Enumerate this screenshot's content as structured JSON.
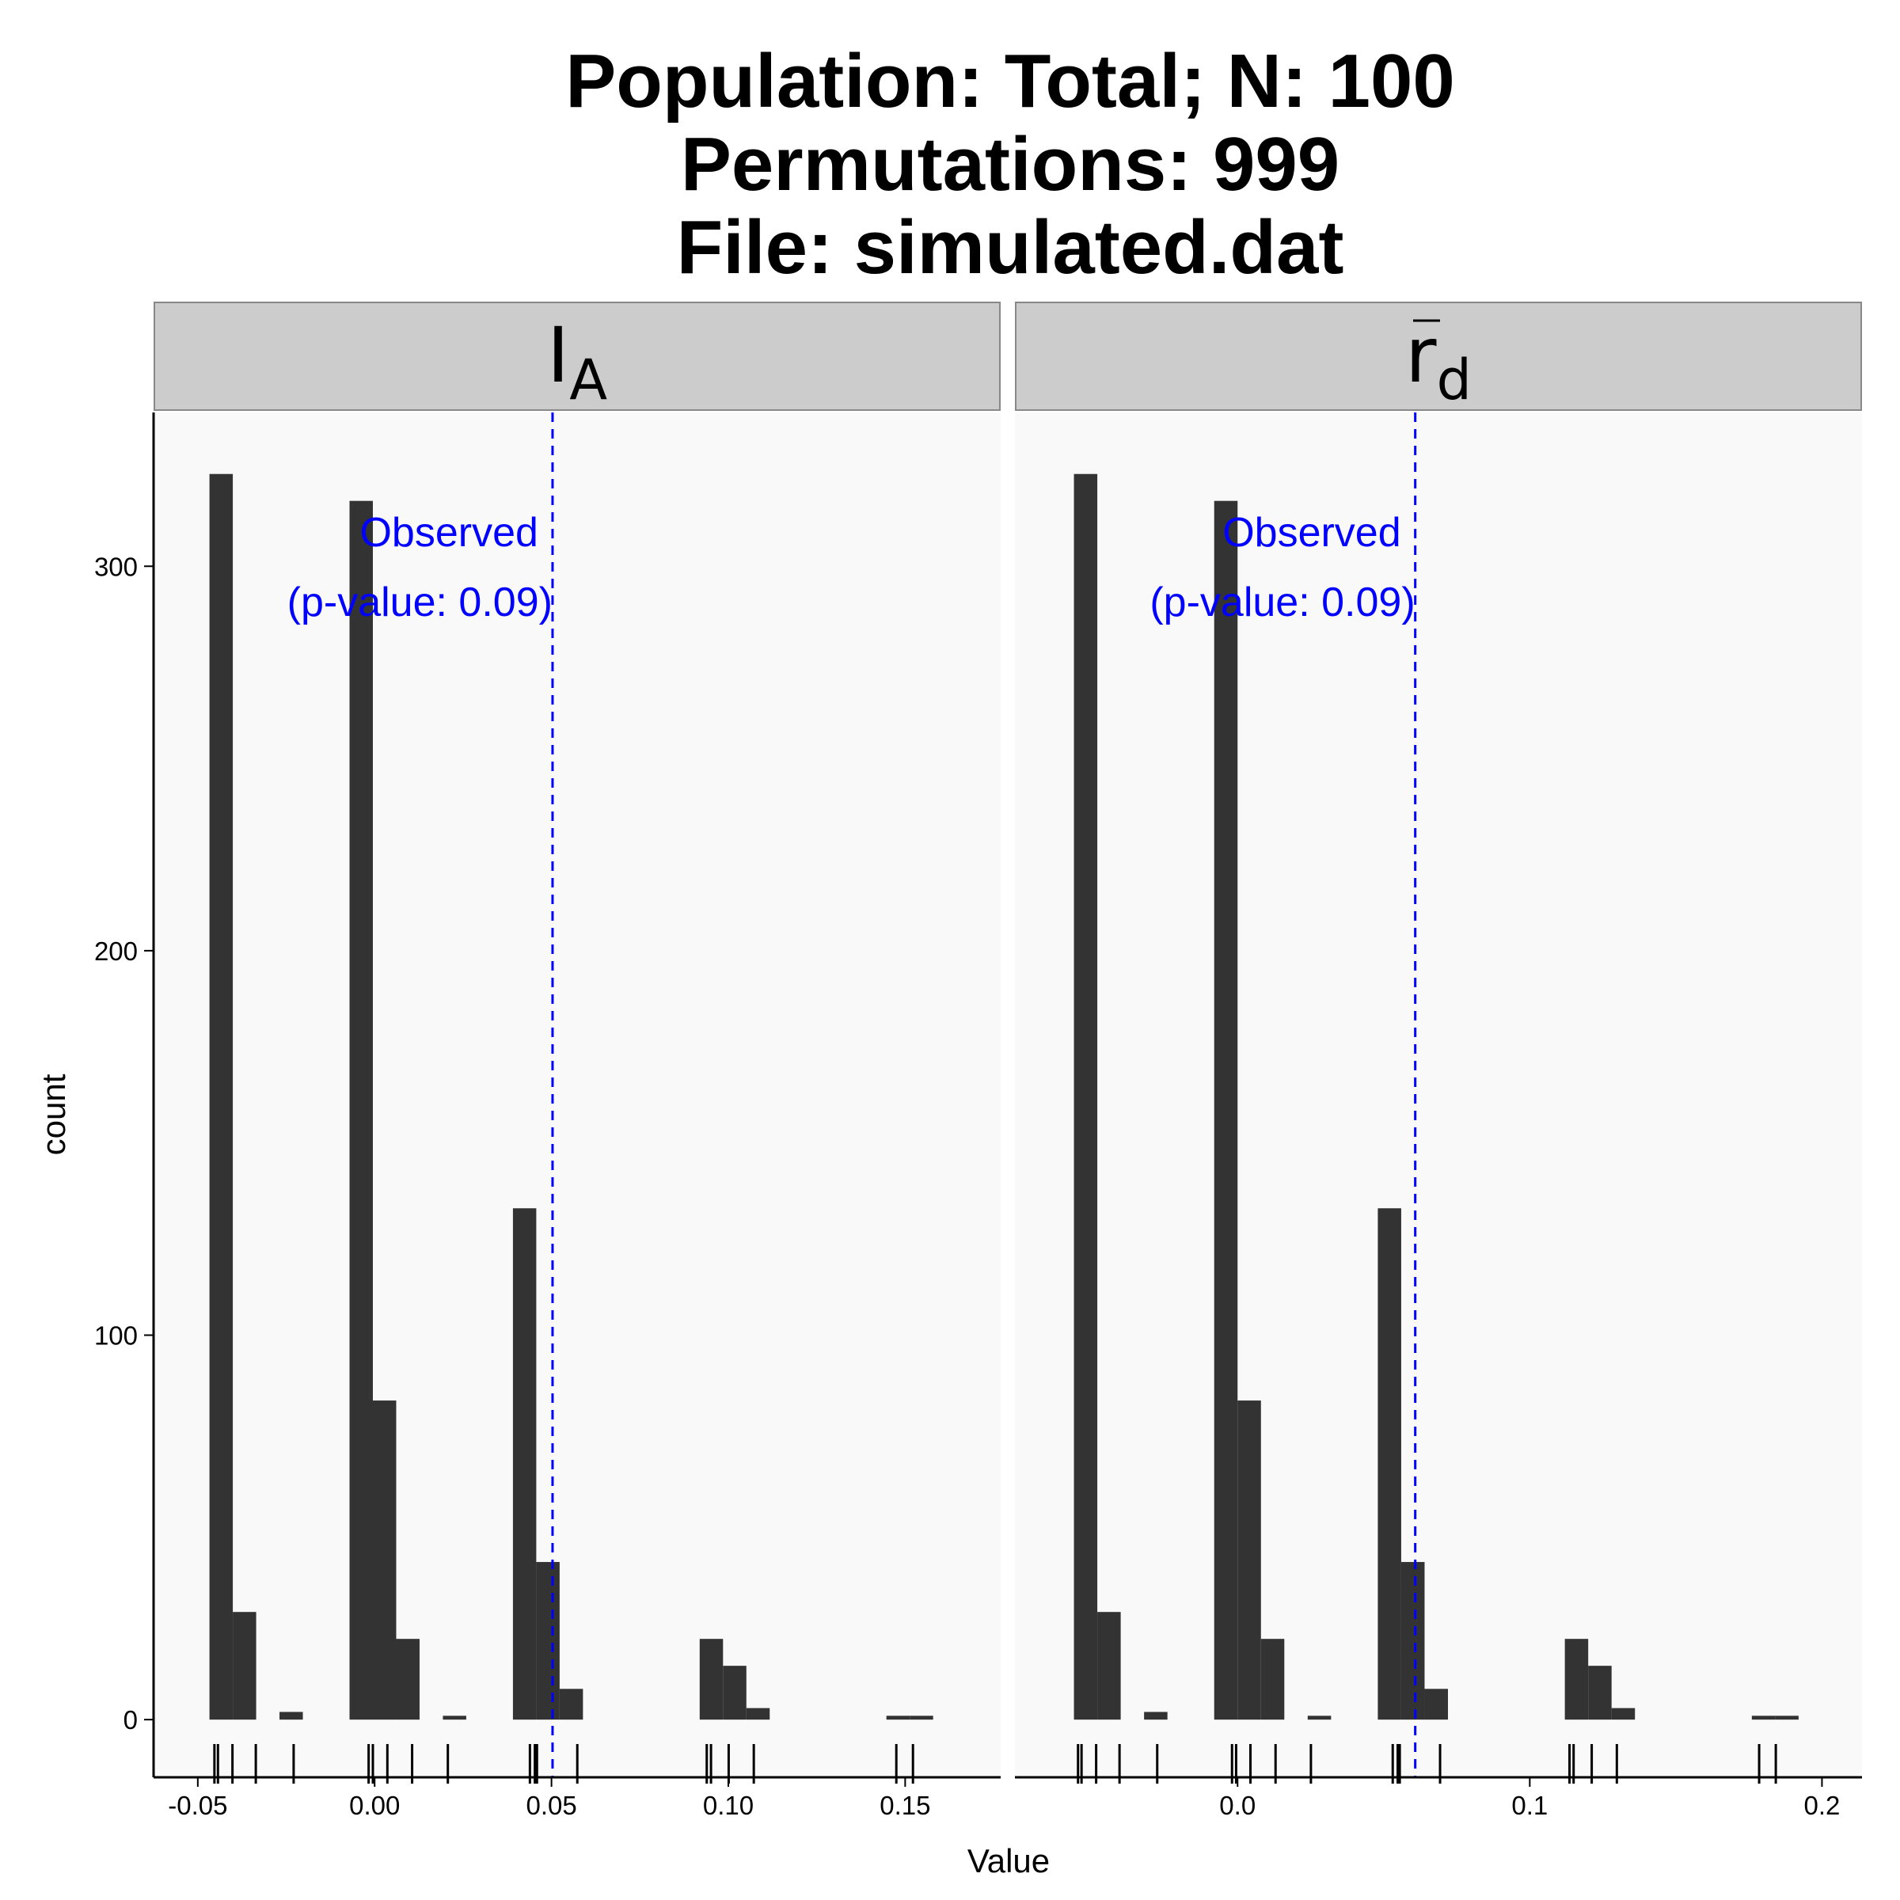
{
  "chart_data": {
    "type": "bar",
    "title": [
      "Population: Total; N: 100",
      "Permutations: 999",
      "File: simulated.dat"
    ],
    "xlabel": "Value",
    "ylabel": "count",
    "ylim": [
      -15,
      340
    ],
    "y_ticks": [
      0,
      100,
      200,
      300
    ],
    "y_tick_labels": [
      "0",
      "100",
      "200",
      "300"
    ],
    "grid": false,
    "legend": "none",
    "colors": {
      "bar": "#333333",
      "panel_bg": "#f9f9f9",
      "strip_bg": "#cccccc",
      "observed": "#0000ff"
    },
    "panels": [
      {
        "strip_label": {
          "main": "I",
          "sub": "A",
          "overbar": false
        },
        "xlim": [
          -0.0625,
          0.177
        ],
        "x_ticks": [
          -0.05,
          0.0,
          0.05,
          0.1,
          0.15
        ],
        "x_tick_labels": [
          "-0.05",
          "0.00",
          "0.05",
          "0.10",
          "0.15"
        ],
        "bin_width": 0.0066,
        "bins_start": [
          -0.0467,
          -0.0401,
          -0.0269,
          -0.0071,
          -0.0005,
          0.0061,
          0.0193,
          0.0391,
          0.0457,
          0.0523,
          0.0919,
          0.0985,
          0.1051,
          0.1447,
          0.1513
        ],
        "counts": [
          324,
          28,
          2,
          317,
          83,
          21,
          1,
          133,
          41,
          8,
          21,
          14,
          3,
          1,
          1
        ],
        "rug": [
          -0.0453,
          -0.0443,
          -0.0402,
          -0.0336,
          -0.0229,
          -0.0017,
          -0.0005,
          0.0036,
          0.0106,
          0.0207,
          0.0439,
          0.0453,
          0.0459,
          0.0573,
          0.0939,
          0.0951,
          0.1001,
          0.1072,
          0.1475,
          0.1522
        ],
        "observed": {
          "value": 0.0503,
          "label_1": "Observed",
          "label_2": "(p-value: 0.09)"
        }
      },
      {
        "strip_label": {
          "main": "r",
          "sub": "d",
          "overbar": true
        },
        "xlim": [
          -0.0762,
          0.2137
        ],
        "x_ticks": [
          0.0,
          0.1,
          0.2
        ],
        "x_tick_labels": [
          "0.0",
          "0.1",
          "0.2"
        ],
        "bin_width": 0.008,
        "bins_start": [
          -0.056,
          -0.048,
          -0.032,
          -0.008,
          0.0,
          0.008,
          0.024,
          0.048,
          0.056,
          0.064,
          0.112,
          0.12,
          0.128,
          0.176,
          0.184
        ],
        "counts": [
          324,
          28,
          2,
          317,
          83,
          21,
          1,
          133,
          41,
          8,
          21,
          14,
          3,
          1,
          1
        ],
        "rug": [
          -0.0546,
          -0.0534,
          -0.0484,
          -0.0404,
          -0.0275,
          -0.0019,
          -0.0005,
          0.0044,
          0.013,
          0.0251,
          0.0531,
          0.0548,
          0.0555,
          0.0693,
          0.1136,
          0.115,
          0.1212,
          0.1298,
          0.1785,
          0.1842
        ],
        "observed": {
          "value": 0.0608,
          "label_1": "Observed",
          "label_2": "(p-value: 0.09)"
        }
      }
    ]
  }
}
